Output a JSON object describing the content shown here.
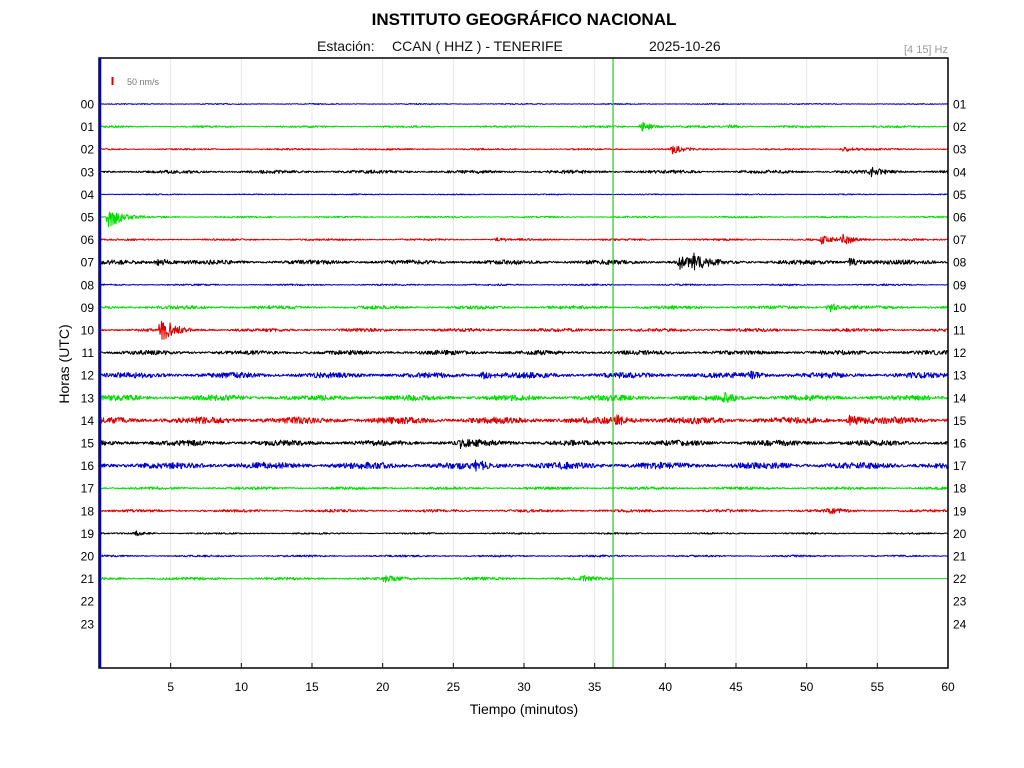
{
  "header": {
    "title": "INSTITUTO GEOGRÁFICO NACIONAL",
    "station_prefix": "Estación:",
    "station": "CCAN ( HHZ ) - TENERIFE",
    "date": "2025-10-26",
    "filter": "[4 15] Hz",
    "scale_label": "50 nm/s"
  },
  "colors": {
    "trace_cycle": [
      "#0000cc",
      "#00dd00",
      "#dd0000",
      "#000000"
    ],
    "current_time_marker": "#22cc22",
    "scale_bar": "#dd0000",
    "grid": "#e6e6e6",
    "frame": "#000000"
  },
  "chart_data": {
    "type": "line",
    "title": "INSTITUTO GEOGRÁFICO NACIONAL",
    "xlabel": "Tiempo (minutos)",
    "ylabel": "Horas (UTC)",
    "xlim": [
      0,
      60
    ],
    "x_ticks": [
      5,
      10,
      15,
      20,
      25,
      30,
      35,
      40,
      45,
      50,
      55,
      60
    ],
    "grid": true,
    "left_hour_labels": [
      "00",
      "01",
      "02",
      "03",
      "04",
      "05",
      "06",
      "07",
      "08",
      "09",
      "10",
      "11",
      "12",
      "13",
      "14",
      "15",
      "16",
      "17",
      "18",
      "19",
      "20",
      "21",
      "22",
      "23"
    ],
    "right_hour_labels": [
      "01",
      "02",
      "03",
      "04",
      "05",
      "06",
      "07",
      "08",
      "09",
      "10",
      "11",
      "12",
      "13",
      "14",
      "15",
      "16",
      "17",
      "18",
      "19",
      "20",
      "21",
      "22",
      "23",
      "24"
    ],
    "current_time_minute": 36.3,
    "last_trace_end_minute": 36.3,
    "series": [
      {
        "hour": 0,
        "noise": 0.4,
        "events": []
      },
      {
        "hour": 1,
        "noise": 0.7,
        "events": [
          {
            "t": 38.3,
            "amp": 5
          },
          {
            "t": 44.5,
            "amp": 2
          }
        ]
      },
      {
        "hour": 2,
        "noise": 0.6,
        "events": [
          {
            "t": 40.5,
            "amp": 4
          },
          {
            "t": 52.5,
            "amp": 3
          }
        ]
      },
      {
        "hour": 3,
        "noise": 1.2,
        "events": [
          {
            "t": 54.5,
            "amp": 4
          }
        ]
      },
      {
        "hour": 4,
        "noise": 0.4,
        "events": []
      },
      {
        "hour": 5,
        "noise": 0.6,
        "events": [
          {
            "t": 0.6,
            "amp": 14
          }
        ]
      },
      {
        "hour": 6,
        "noise": 0.7,
        "events": [
          {
            "t": 28,
            "amp": 2
          },
          {
            "t": 51,
            "amp": 4
          },
          {
            "t": 52.5,
            "amp": 6
          }
        ]
      },
      {
        "hour": 7,
        "noise": 1.6,
        "events": [
          {
            "t": 4,
            "amp": 4
          },
          {
            "t": 41,
            "amp": 7
          },
          {
            "t": 42,
            "amp": 7
          },
          {
            "t": 53,
            "amp": 4
          }
        ]
      },
      {
        "hour": 8,
        "noise": 0.6,
        "events": []
      },
      {
        "hour": 9,
        "noise": 1.2,
        "events": [
          {
            "t": 51.5,
            "amp": 5
          }
        ]
      },
      {
        "hour": 10,
        "noise": 1.2,
        "events": [
          {
            "t": 4.3,
            "amp": 14
          }
        ]
      },
      {
        "hour": 11,
        "noise": 1.6,
        "events": []
      },
      {
        "hour": 12,
        "noise": 2.0,
        "events": [
          {
            "t": 27,
            "amp": 4
          },
          {
            "t": 46,
            "amp": 3
          }
        ]
      },
      {
        "hour": 13,
        "noise": 2.0,
        "events": [
          {
            "t": 44,
            "amp": 5
          }
        ]
      },
      {
        "hour": 14,
        "noise": 2.4,
        "events": [
          {
            "t": 36.5,
            "amp": 4
          },
          {
            "t": 53,
            "amp": 5
          }
        ]
      },
      {
        "hour": 15,
        "noise": 2.0,
        "events": [
          {
            "t": 25.5,
            "amp": 4
          }
        ]
      },
      {
        "hour": 16,
        "noise": 2.4,
        "events": [
          {
            "t": 26.5,
            "amp": 4
          }
        ]
      },
      {
        "hour": 17,
        "noise": 1.0,
        "events": []
      },
      {
        "hour": 18,
        "noise": 1.0,
        "events": [
          {
            "t": 51.5,
            "amp": 3
          }
        ]
      },
      {
        "hour": 19,
        "noise": 0.6,
        "events": [
          {
            "t": 2.5,
            "amp": 2
          }
        ]
      },
      {
        "hour": 20,
        "noise": 0.7,
        "events": []
      },
      {
        "hour": 21,
        "noise": 1.0,
        "events": [
          {
            "t": 20,
            "amp": 3
          },
          {
            "t": 34,
            "amp": 3
          }
        ]
      }
    ]
  }
}
